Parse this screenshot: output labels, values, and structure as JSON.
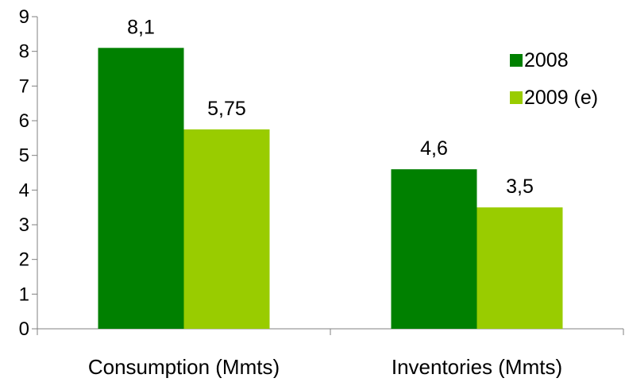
{
  "chart_data": {
    "type": "bar",
    "categories": [
      "Consumption (Mmts)",
      "Inventories (Mmts)"
    ],
    "series": [
      {
        "name": "2008",
        "values": [
          8.1,
          4.6
        ],
        "labels": [
          "8,1",
          "4,6"
        ],
        "color": "#008000"
      },
      {
        "name": "2009 (e)",
        "values": [
          5.75,
          3.5
        ],
        "labels": [
          "5,75",
          "3,5"
        ],
        "color": "#99cc00"
      }
    ],
    "ylim": [
      0,
      9
    ],
    "yticks": [
      "0",
      "1",
      "2",
      "3",
      "4",
      "5",
      "6",
      "7",
      "8",
      "9"
    ],
    "grid": false,
    "legend_position": "top-right",
    "axis_color": "#808080"
  }
}
